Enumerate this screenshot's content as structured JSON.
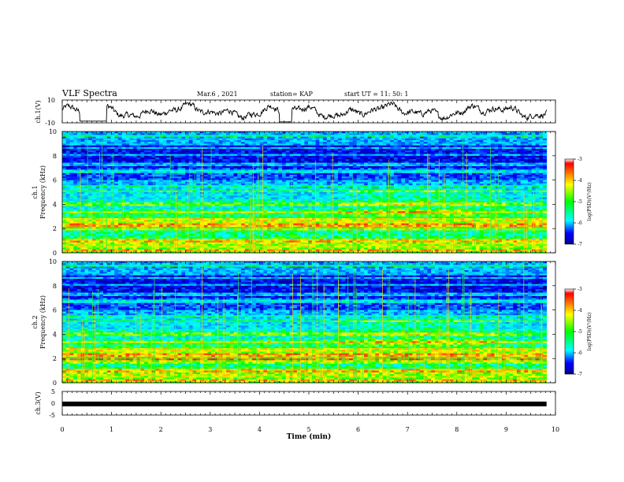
{
  "chart_data": {
    "type": "heatmap",
    "title": "VLF Spectra",
    "header": {
      "date": "Mar.6 , 2021",
      "station": "station= KAP",
      "start": "start UT = 11: 50: 1"
    },
    "x": {
      "label": "Time (min)",
      "range": [
        0,
        10
      ],
      "ticks": [
        "0",
        "1",
        "2",
        "3",
        "4",
        "5",
        "6",
        "7",
        "8",
        "9",
        "10"
      ]
    },
    "panels": [
      {
        "id": "ch1-waveform",
        "ylabel": "ch.1(V)",
        "ylim": [
          -10,
          10
        ],
        "yticks": [
          "10",
          "-10"
        ],
        "type": "line"
      },
      {
        "id": "ch1-spectrogram",
        "ylabel": "ch.1\nFrequency (kHz)",
        "ylim": [
          0,
          10
        ],
        "yticks": [
          "0",
          "2",
          "4",
          "6",
          "8",
          "10"
        ],
        "type": "heatmap",
        "colorbar": {
          "label": "log(PSD)(V²/Hz)",
          "range": [
            -7,
            -3
          ],
          "ticks": [
            "-3",
            "-4",
            "-5",
            "-6",
            "-7"
          ]
        }
      },
      {
        "id": "ch2-spectrogram",
        "ylabel": "ch.2\nFrequency (kHz)",
        "ylim": [
          0,
          10
        ],
        "yticks": [
          "0",
          "2",
          "4",
          "6",
          "8",
          "10"
        ],
        "type": "heatmap",
        "colorbar": {
          "label": "log(PSD)(V²/Hz)",
          "range": [
            -7,
            -3
          ],
          "ticks": [
            "-3",
            "-4",
            "-5",
            "-6",
            "-7"
          ]
        }
      },
      {
        "id": "ch3-waveform",
        "ylabel": "ch.3(V)",
        "ylim": [
          -5,
          5
        ],
        "yticks": [
          "5",
          "0",
          "-5"
        ],
        "type": "line",
        "level": -0.3
      }
    ],
    "data_extent_min": 9.82
  }
}
